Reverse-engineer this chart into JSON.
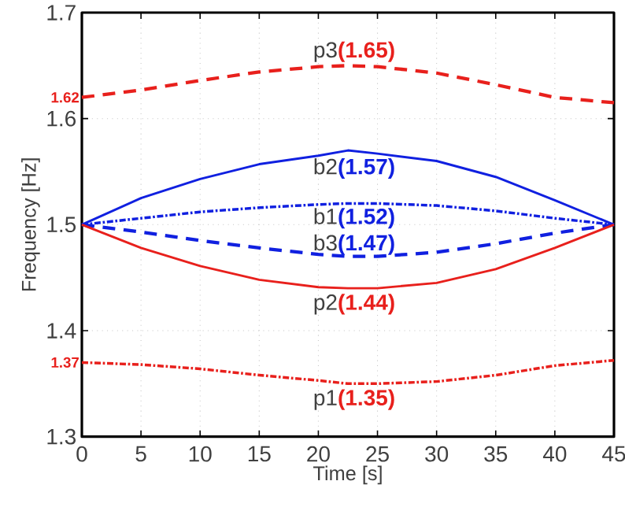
{
  "chart_data": {
    "type": "line",
    "xlabel": "Time [s]",
    "ylabel": "Frequency [Hz]",
    "x": [
      0,
      5,
      10,
      15,
      20,
      22.5,
      25,
      30,
      35,
      40,
      45
    ],
    "xlim": [
      0,
      45
    ],
    "xticks": [
      0,
      5,
      10,
      15,
      20,
      25,
      30,
      35,
      40,
      45
    ],
    "ylim": [
      1.3,
      1.7
    ],
    "yticks": [
      1.3,
      1.4,
      1.5,
      1.6,
      1.7
    ],
    "grid": true,
    "marker": "none",
    "series": [
      {
        "name": "p3",
        "color": "#e8201c",
        "line_style": "dashed",
        "values": [
          1.62,
          1.627,
          1.636,
          1.644,
          1.649,
          1.65,
          1.649,
          1.643,
          1.632,
          1.62,
          1.615
        ],
        "value_labels": [
          "1.62",
          null,
          null,
          null,
          null,
          "(1.65)",
          null,
          null,
          null,
          null,
          null
        ]
      },
      {
        "name": "b2",
        "color": "#1020e0",
        "line_style": "solid",
        "values": [
          1.5,
          1.525,
          1.543,
          1.557,
          1.565,
          1.57,
          1.567,
          1.56,
          1.545,
          1.523,
          1.5
        ],
        "value_labels": [
          null,
          null,
          null,
          null,
          null,
          "(1.57)",
          null,
          null,
          null,
          null,
          null
        ]
      },
      {
        "name": "b1",
        "color": "#1020e0",
        "line_style": "dotted",
        "values": [
          1.5,
          1.506,
          1.512,
          1.516,
          1.519,
          1.52,
          1.52,
          1.518,
          1.513,
          1.506,
          1.5
        ],
        "value_labels": [
          null,
          null,
          null,
          null,
          null,
          "(1.52)",
          null,
          null,
          null,
          null,
          null
        ]
      },
      {
        "name": "b3",
        "color": "#1020e0",
        "line_style": "dashed",
        "values": [
          1.5,
          1.493,
          1.485,
          1.478,
          1.472,
          1.47,
          1.47,
          1.474,
          1.482,
          1.492,
          1.5
        ],
        "value_labels": [
          null,
          null,
          null,
          null,
          null,
          "(1.47)",
          null,
          null,
          null,
          null,
          null
        ]
      },
      {
        "name": "p2",
        "color": "#e8201c",
        "line_style": "solid",
        "values": [
          1.5,
          1.478,
          1.461,
          1.448,
          1.441,
          1.44,
          1.44,
          1.445,
          1.458,
          1.478,
          1.5
        ],
        "value_labels": [
          null,
          null,
          null,
          null,
          null,
          "(1.44)",
          null,
          null,
          null,
          null,
          null
        ]
      },
      {
        "name": "p1",
        "color": "#e8201c",
        "line_style": "dotted",
        "values": [
          1.37,
          1.368,
          1.364,
          1.358,
          1.353,
          1.35,
          1.35,
          1.352,
          1.358,
          1.367,
          1.372
        ],
        "value_labels": [
          "1.37",
          null,
          null,
          null,
          null,
          "(1.35)",
          null,
          null,
          null,
          null,
          null
        ]
      }
    ]
  }
}
